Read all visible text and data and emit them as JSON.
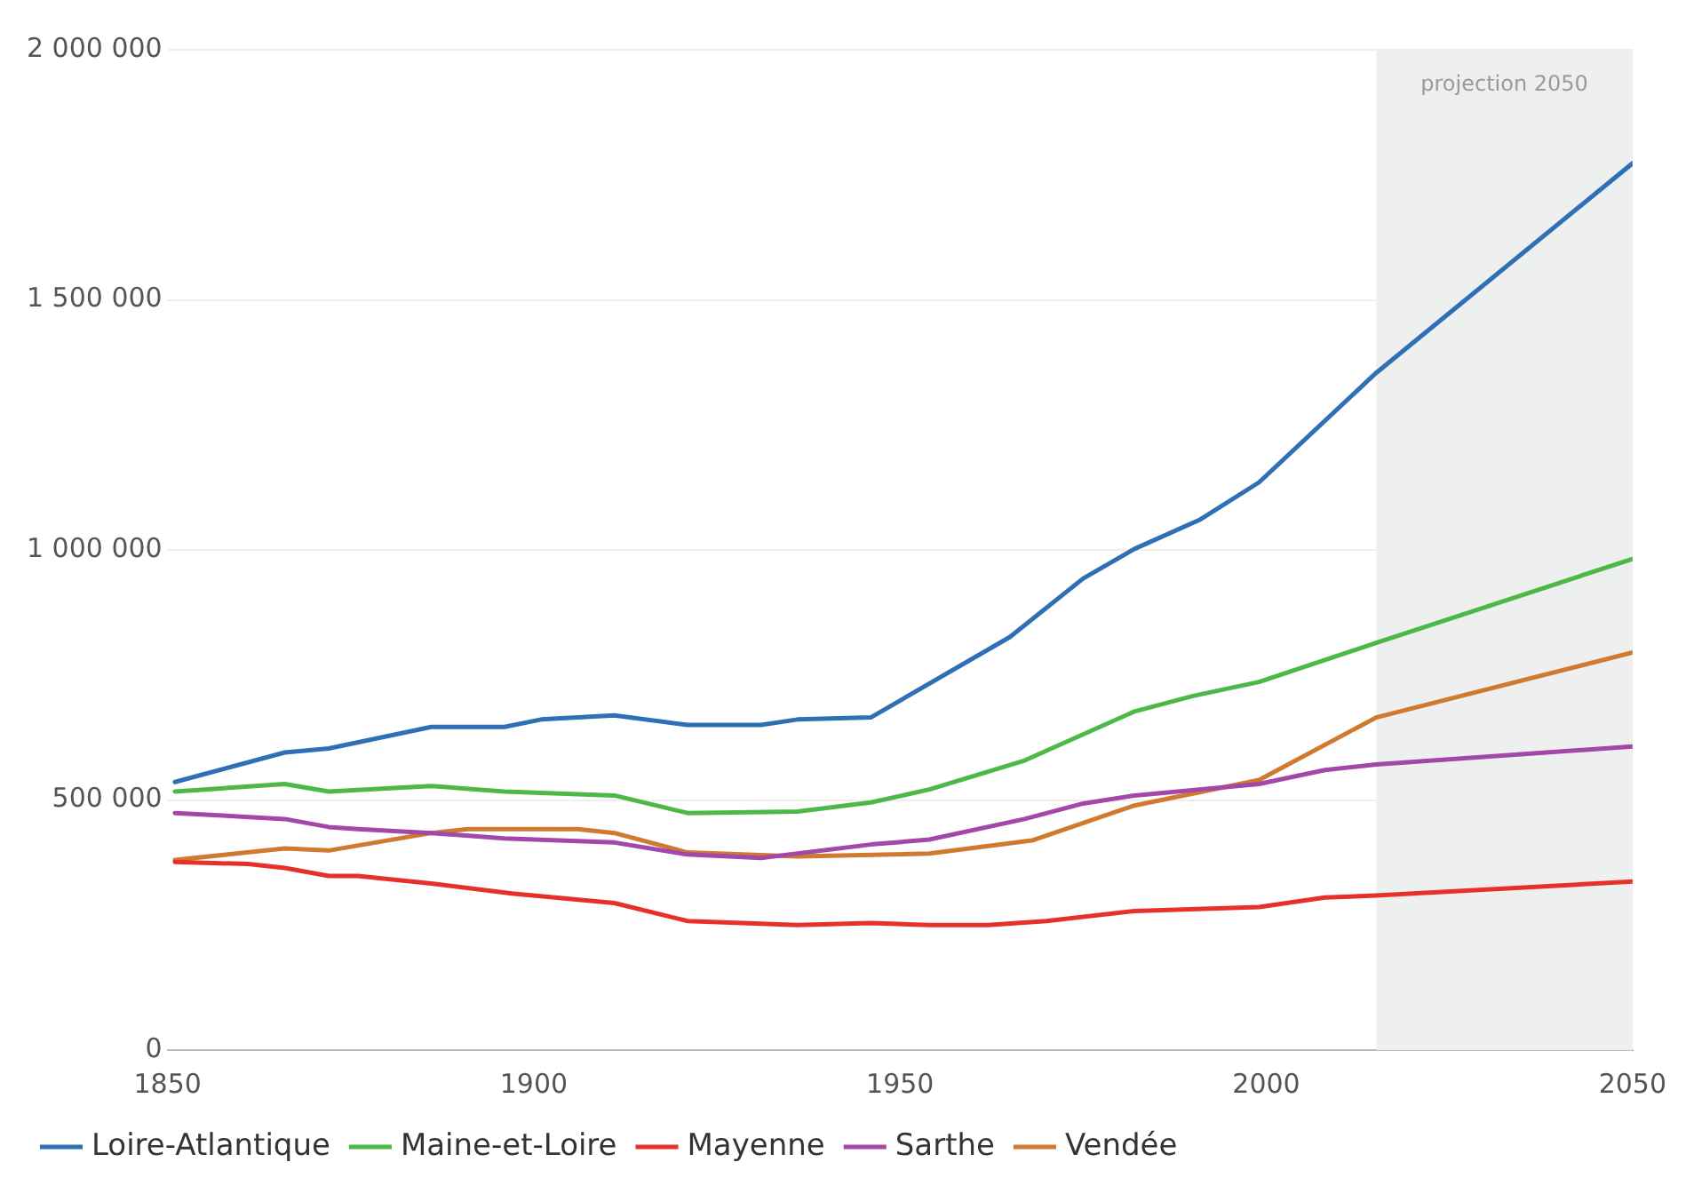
{
  "chart_data": {
    "type": "line",
    "xlim": [
      1850,
      2050
    ],
    "xticks": [
      1850,
      1900,
      1950,
      2000,
      2050
    ],
    "ylim": [
      0,
      2000000
    ],
    "yticks": [
      {
        "value": 0,
        "label": "0"
      },
      {
        "value": 500000,
        "label": "500 000"
      },
      {
        "value": 1000000,
        "label": "1 000 000"
      },
      {
        "value": 1500000,
        "label": "1 500 000"
      },
      {
        "value": 2000000,
        "label": "2 000 000"
      }
    ],
    "grid": "y",
    "legend": "bottom",
    "marker": "none",
    "line_style": "solid",
    "bands": [
      {
        "axis": "x",
        "from": 2015,
        "to": 2050,
        "label": "projection 2050",
        "color": "#eef0f0"
      }
    ],
    "series": [
      {
        "name": "Loire-Atlantique",
        "color": "#2f6fb5",
        "x": [
          1851,
          1866,
          1872,
          1886,
          1896,
          1901,
          1911,
          1921,
          1931,
          1936,
          1946,
          1965,
          1975,
          1982,
          1991,
          1999,
          2015,
          2050
        ],
        "values": [
          536000,
          595000,
          603000,
          646000,
          646000,
          661000,
          669000,
          650000,
          650000,
          661000,
          665000,
          826000,
          943000,
          1002000,
          1061000,
          1135000,
          1354000,
          1773000
        ]
      },
      {
        "name": "Maine-et-Loire",
        "color": "#4cb848",
        "x": [
          1851,
          1866,
          1872,
          1886,
          1896,
          1911,
          1921,
          1936,
          1946,
          1954,
          1967,
          1982,
          1990,
          1999,
          2015,
          2050
        ],
        "values": [
          517000,
          532000,
          517000,
          528000,
          517000,
          509000,
          474000,
          477000,
          495000,
          521000,
          579000,
          677000,
          708000,
          736000,
          814000,
          982000
        ]
      },
      {
        "name": "Mayenne",
        "color": "#e8302a",
        "x": [
          1851,
          1861,
          1866,
          1872,
          1876,
          1886,
          1897,
          1911,
          1921,
          1936,
          1946,
          1954,
          1962,
          1970,
          1982,
          1999,
          2008,
          2015,
          2050
        ],
        "values": [
          376000,
          372000,
          364000,
          348000,
          348000,
          333000,
          313000,
          294000,
          258000,
          250000,
          254000,
          250000,
          250000,
          258000,
          278000,
          286000,
          305000,
          309000,
          337000
        ]
      },
      {
        "name": "Sarthe",
        "color": "#a347a8",
        "x": [
          1851,
          1866,
          1872,
          1876,
          1886,
          1896,
          1911,
          1921,
          1931,
          1946,
          1954,
          1967,
          1975,
          1982,
          1999,
          2008,
          2015,
          2050
        ],
        "values": [
          474000,
          462000,
          446000,
          442000,
          434000,
          423000,
          415000,
          391000,
          384000,
          411000,
          421000,
          462000,
          493000,
          509000,
          532000,
          560000,
          571000,
          607000
        ]
      },
      {
        "name": "Vendée",
        "color": "#d07a30",
        "x": [
          1851,
          1866,
          1872,
          1886,
          1891,
          1906,
          1911,
          1921,
          1936,
          1954,
          1968,
          1982,
          1999,
          2015,
          2050
        ],
        "values": [
          380000,
          403000,
          399000,
          434000,
          442000,
          442000,
          434000,
          395000,
          387000,
          393000,
          419000,
          489000,
          540000,
          665000,
          795000
        ]
      }
    ]
  }
}
